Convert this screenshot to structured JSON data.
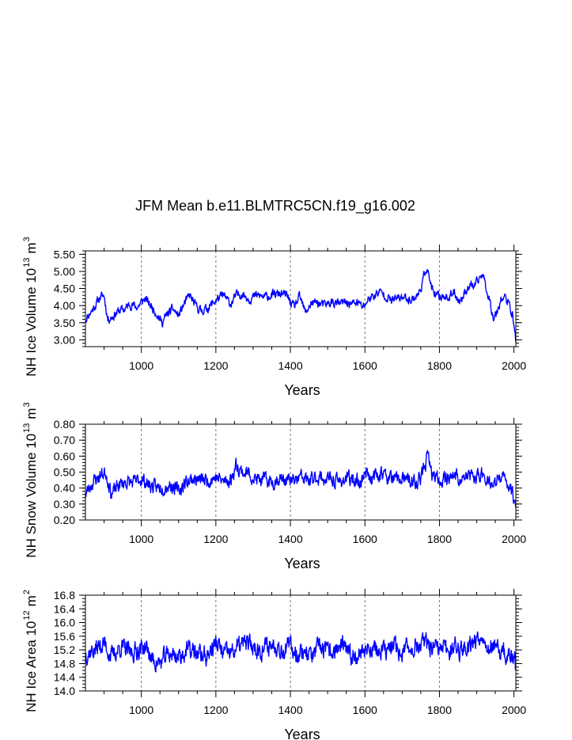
{
  "title": "JFM Mean b.e11.BLMTRC5CN.f19_g16.002",
  "chart_data": [
    {
      "type": "line",
      "name": "ice-volume",
      "ylabel": "NH Ice Volume 10",
      "ylabel_sup": "13",
      "ylabel_unit": "m",
      "ylabel_unit_sup": "3",
      "xlabel": "Years",
      "xlim": [
        850,
        2005
      ],
      "ylim": [
        2.8,
        5.6
      ],
      "xticks": [
        1000,
        1200,
        1400,
        1600,
        1800,
        2000
      ],
      "xtick_labels": [
        "1000",
        "1200",
        "1400",
        "1600",
        "1800",
        "2000"
      ],
      "yticks": [
        3.0,
        3.5,
        4.0,
        4.5,
        5.0,
        5.5
      ],
      "ytick_labels": [
        "3.00",
        "3.50",
        "4.00",
        "4.50",
        "5.00",
        "5.50"
      ],
      "yminor_step": 0.1,
      "gridlines_x": [
        1000,
        1200,
        1400,
        1600,
        1800
      ],
      "color": "#0000ff",
      "anchors": [
        [
          850,
          3.6
        ],
        [
          870,
          3.9
        ],
        [
          890,
          4.25
        ],
        [
          900,
          4.3
        ],
        [
          910,
          3.6
        ],
        [
          925,
          3.7
        ],
        [
          940,
          3.85
        ],
        [
          955,
          3.9
        ],
        [
          970,
          4.05
        ],
        [
          990,
          3.95
        ],
        [
          1000,
          4.1
        ],
        [
          1010,
          4.2
        ],
        [
          1025,
          4.0
        ],
        [
          1040,
          3.8
        ],
        [
          1055,
          3.5
        ],
        [
          1070,
          3.75
        ],
        [
          1085,
          3.9
        ],
        [
          1100,
          3.7
        ],
        [
          1115,
          4.05
        ],
        [
          1130,
          4.3
        ],
        [
          1145,
          4.0
        ],
        [
          1160,
          3.85
        ],
        [
          1175,
          3.9
        ],
        [
          1190,
          4.05
        ],
        [
          1205,
          4.2
        ],
        [
          1220,
          4.3
        ],
        [
          1240,
          4.05
        ],
        [
          1255,
          4.3
        ],
        [
          1270,
          4.35
        ],
        [
          1290,
          4.2
        ],
        [
          1310,
          4.3
        ],
        [
          1330,
          4.25
        ],
        [
          1350,
          4.3
        ],
        [
          1370,
          4.35
        ],
        [
          1390,
          4.3
        ],
        [
          1400,
          4.1
        ],
        [
          1410,
          3.95
        ],
        [
          1425,
          4.25
        ],
        [
          1440,
          3.8
        ],
        [
          1455,
          4.05
        ],
        [
          1470,
          4.1
        ],
        [
          1490,
          4.0
        ],
        [
          1510,
          4.1
        ],
        [
          1530,
          4.05
        ],
        [
          1550,
          4.1
        ],
        [
          1565,
          4.05
        ],
        [
          1580,
          4.1
        ],
        [
          1595,
          3.95
        ],
        [
          1610,
          4.2
        ],
        [
          1625,
          4.3
        ],
        [
          1640,
          4.4
        ],
        [
          1655,
          4.3
        ],
        [
          1670,
          4.15
        ],
        [
          1685,
          4.2
        ],
        [
          1700,
          4.25
        ],
        [
          1715,
          4.2
        ],
        [
          1730,
          4.2
        ],
        [
          1745,
          4.35
        ],
        [
          1755,
          4.7
        ],
        [
          1765,
          5.15
        ],
        [
          1775,
          4.7
        ],
        [
          1785,
          4.3
        ],
        [
          1800,
          4.25
        ],
        [
          1815,
          4.3
        ],
        [
          1825,
          4.2
        ],
        [
          1840,
          4.4
        ],
        [
          1855,
          4.1
        ],
        [
          1870,
          4.45
        ],
        [
          1885,
          4.6
        ],
        [
          1895,
          4.55
        ],
        [
          1905,
          4.75
        ],
        [
          1915,
          4.95
        ],
        [
          1925,
          4.55
        ],
        [
          1935,
          4.15
        ],
        [
          1945,
          3.65
        ],
        [
          1955,
          3.85
        ],
        [
          1965,
          4.2
        ],
        [
          1975,
          4.25
        ],
        [
          1985,
          4.05
        ],
        [
          1995,
          3.8
        ],
        [
          2005,
          3.0
        ]
      ],
      "noise": 0.13,
      "seed": 11
    },
    {
      "type": "line",
      "name": "snow-volume",
      "ylabel": "NH Snow Volume 10",
      "ylabel_sup": "13",
      "ylabel_unit": "m",
      "ylabel_unit_sup": "3",
      "xlabel": "Years",
      "xlim": [
        850,
        2005
      ],
      "ylim": [
        0.2,
        0.8
      ],
      "xticks": [
        1000,
        1200,
        1400,
        1600,
        1800,
        2000
      ],
      "xtick_labels": [
        "1000",
        "1200",
        "1400",
        "1600",
        "1800",
        "2000"
      ],
      "yticks": [
        0.2,
        0.3,
        0.4,
        0.5,
        0.6,
        0.7,
        0.8
      ],
      "ytick_labels": [
        "0.20",
        "0.30",
        "0.40",
        "0.50",
        "0.60",
        "0.70",
        "0.80"
      ],
      "yminor_step": 0.02,
      "gridlines_x": [
        1000,
        1200,
        1400,
        1600,
        1800
      ],
      "color": "#0000ff",
      "anchors": [
        [
          850,
          0.36
        ],
        [
          870,
          0.44
        ],
        [
          890,
          0.48
        ],
        [
          905,
          0.5
        ],
        [
          920,
          0.36
        ],
        [
          940,
          0.42
        ],
        [
          960,
          0.44
        ],
        [
          980,
          0.43
        ],
        [
          1000,
          0.46
        ],
        [
          1020,
          0.42
        ],
        [
          1040,
          0.4
        ],
        [
          1060,
          0.41
        ],
        [
          1080,
          0.42
        ],
        [
          1100,
          0.38
        ],
        [
          1120,
          0.44
        ],
        [
          1140,
          0.46
        ],
        [
          1160,
          0.45
        ],
        [
          1180,
          0.45
        ],
        [
          1200,
          0.47
        ],
        [
          1220,
          0.44
        ],
        [
          1240,
          0.45
        ],
        [
          1255,
          0.55
        ],
        [
          1270,
          0.5
        ],
        [
          1290,
          0.49
        ],
        [
          1310,
          0.45
        ],
        [
          1330,
          0.45
        ],
        [
          1350,
          0.44
        ],
        [
          1370,
          0.46
        ],
        [
          1390,
          0.45
        ],
        [
          1410,
          0.44
        ],
        [
          1430,
          0.47
        ],
        [
          1450,
          0.44
        ],
        [
          1470,
          0.47
        ],
        [
          1490,
          0.46
        ],
        [
          1510,
          0.45
        ],
        [
          1530,
          0.44
        ],
        [
          1550,
          0.46
        ],
        [
          1570,
          0.45
        ],
        [
          1590,
          0.44
        ],
        [
          1605,
          0.52
        ],
        [
          1620,
          0.45
        ],
        [
          1640,
          0.5
        ],
        [
          1660,
          0.47
        ],
        [
          1680,
          0.45
        ],
        [
          1700,
          0.46
        ],
        [
          1720,
          0.44
        ],
        [
          1740,
          0.43
        ],
        [
          1755,
          0.49
        ],
        [
          1768,
          0.6
        ],
        [
          1780,
          0.48
        ],
        [
          1800,
          0.45
        ],
        [
          1820,
          0.47
        ],
        [
          1840,
          0.48
        ],
        [
          1860,
          0.45
        ],
        [
          1880,
          0.48
        ],
        [
          1900,
          0.46
        ],
        [
          1915,
          0.5
        ],
        [
          1930,
          0.45
        ],
        [
          1945,
          0.4
        ],
        [
          1960,
          0.47
        ],
        [
          1975,
          0.45
        ],
        [
          1990,
          0.41
        ],
        [
          2005,
          0.3
        ]
      ],
      "noise": 0.045,
      "seed": 23
    },
    {
      "type": "line",
      "name": "ice-area",
      "ylabel": "NH Ice Area 10",
      "ylabel_sup": "12",
      "ylabel_unit": "m",
      "ylabel_unit_sup": "2",
      "xlabel": "Years",
      "xlim": [
        850,
        2005
      ],
      "ylim": [
        14.0,
        16.8
      ],
      "xticks": [
        1000,
        1200,
        1400,
        1600,
        1800,
        2000
      ],
      "xtick_labels": [
        "1000",
        "1200",
        "1400",
        "1600",
        "1800",
        "2000"
      ],
      "yticks": [
        14.0,
        14.4,
        14.8,
        15.2,
        15.6,
        16.0,
        16.4,
        16.8
      ],
      "ytick_labels": [
        "14.0",
        "14.4",
        "14.8",
        "15.2",
        "15.6",
        "16.0",
        "16.4",
        "16.8"
      ],
      "yminor_step": 0.1,
      "gridlines_x": [
        1000,
        1200,
        1400,
        1600,
        1800
      ],
      "color": "#0000ff",
      "anchors": [
        [
          850,
          15.1
        ],
        [
          875,
          15.2
        ],
        [
          900,
          15.4
        ],
        [
          920,
          15.0
        ],
        [
          945,
          15.3
        ],
        [
          970,
          15.1
        ],
        [
          990,
          15.2
        ],
        [
          1010,
          15.3
        ],
        [
          1030,
          14.9
        ],
        [
          1050,
          14.8
        ],
        [
          1075,
          15.1
        ],
        [
          1100,
          15.0
        ],
        [
          1125,
          15.2
        ],
        [
          1150,
          15.1
        ],
        [
          1175,
          15.0
        ],
        [
          1200,
          15.4
        ],
        [
          1220,
          15.1
        ],
        [
          1240,
          15.1
        ],
        [
          1260,
          15.3
        ],
        [
          1280,
          15.4
        ],
        [
          1300,
          15.3
        ],
        [
          1320,
          15.2
        ],
        [
          1340,
          15.3
        ],
        [
          1360,
          15.4
        ],
        [
          1380,
          15.2
        ],
        [
          1400,
          15.3
        ],
        [
          1420,
          15.1
        ],
        [
          1440,
          15.2
        ],
        [
          1460,
          15.0
        ],
        [
          1480,
          15.3
        ],
        [
          1500,
          15.1
        ],
        [
          1520,
          15.2
        ],
        [
          1540,
          15.3
        ],
        [
          1560,
          15.0
        ],
        [
          1580,
          15.1
        ],
        [
          1600,
          15.2
        ],
        [
          1620,
          15.3
        ],
        [
          1640,
          15.1
        ],
        [
          1660,
          15.2
        ],
        [
          1680,
          15.3
        ],
        [
          1700,
          15.1
        ],
        [
          1720,
          15.3
        ],
        [
          1740,
          15.3
        ],
        [
          1760,
          15.4
        ],
        [
          1780,
          15.2
        ],
        [
          1800,
          15.2
        ],
        [
          1820,
          15.2
        ],
        [
          1840,
          15.3
        ],
        [
          1860,
          15.2
        ],
        [
          1880,
          15.4
        ],
        [
          1900,
          15.5
        ],
        [
          1915,
          15.7
        ],
        [
          1930,
          15.3
        ],
        [
          1950,
          15.2
        ],
        [
          1970,
          15.1
        ],
        [
          1990,
          15.0
        ],
        [
          2005,
          14.8
        ]
      ],
      "noise": 0.28,
      "seed": 37
    }
  ]
}
